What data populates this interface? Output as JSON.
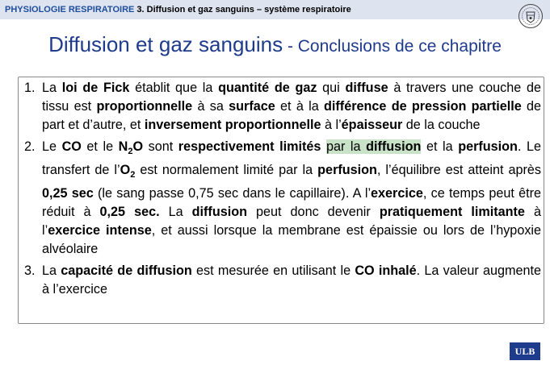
{
  "header": {
    "course": "PHYSIOLOGIE RESPIRATOIRE",
    "chapter": "3. Diffusion et gaz sanguins – système respiratoire"
  },
  "title": {
    "main": "Diffusion et gaz sanguins",
    "sub": " - Conclusions de ce chapitre"
  },
  "items": [
    {
      "num": "1.",
      "segments": [
        {
          "t": "La "
        },
        {
          "t": "loi de Fick",
          "b": true
        },
        {
          "t": " établit que la "
        },
        {
          "t": "quantité de gaz",
          "b": true
        },
        {
          "t": " qui "
        },
        {
          "t": "diffuse",
          "b": true
        },
        {
          "t": " à travers une couche de tissu est "
        },
        {
          "t": "proportionnelle",
          "b": true
        },
        {
          "t": " à sa "
        },
        {
          "t": "surface",
          "b": true
        },
        {
          "t": " et à la "
        },
        {
          "t": "différence de pression partielle",
          "b": true
        },
        {
          "t": " de part et d’autre, et "
        },
        {
          "t": "inversement proportionnelle",
          "b": true
        },
        {
          "t": " à l’"
        },
        {
          "t": "épaisseur",
          "b": true
        },
        {
          "t": " de la couche"
        }
      ]
    },
    {
      "num": "2.",
      "segments": [
        {
          "t": "Le "
        },
        {
          "t": "CO",
          "b": true
        },
        {
          "t": " et le "
        },
        {
          "t": "N",
          "b": true
        },
        {
          "t": "2",
          "b": true,
          "sub": true
        },
        {
          "t": "O",
          "b": true
        },
        {
          "t": " sont "
        },
        {
          "t": "respectivement limités",
          "b": true
        },
        {
          "t": " "
        },
        {
          "t": "par la ",
          "hl": true
        },
        {
          "t": "diffusion",
          "b": true,
          "hl": true
        },
        {
          "t": "  et la "
        },
        {
          "t": "perfusion",
          "b": true
        },
        {
          "t": ". Le transfert de l’"
        },
        {
          "t": "O",
          "b": true
        },
        {
          "t": "2",
          "b": true,
          "sub": true
        },
        {
          "t": " est normalement limité par la "
        },
        {
          "t": "perfusion",
          "b": true
        },
        {
          "t": ", l’équilibre est atteint après "
        },
        {
          "t": "0,25 sec",
          "b": true
        },
        {
          "t": " (le sang passe 0,75 sec dans le capillaire). A l’"
        },
        {
          "t": "exercice",
          "b": true
        },
        {
          "t": ", ce temps peut être réduit à "
        },
        {
          "t": "0,25 sec.",
          "b": true
        },
        {
          "t": " La "
        },
        {
          "t": "diffusion",
          "b": true
        },
        {
          "t": " peut donc devenir "
        },
        {
          "t": "pratiquement limitante",
          "b": true
        },
        {
          "t": " à l’"
        },
        {
          "t": "exercice intense",
          "b": true
        },
        {
          "t": ", et aussi lorsque la membrane est épaissie ou lors de l’hypoxie alvéolaire"
        }
      ]
    },
    {
      "num": "3.",
      "segments": [
        {
          "t": "La "
        },
        {
          "t": "capacité de diffusion",
          "b": true
        },
        {
          "t": " est mesurée en utilisant le "
        },
        {
          "t": "CO inhalé",
          "b": true
        },
        {
          "t": ". La valeur augmente à l’exercice"
        }
      ]
    }
  ],
  "footer_logo": "ULB",
  "colors": {
    "accent": "#1f3b8c",
    "header_bg": "#dde3ef",
    "highlight": "#c8e3c8"
  }
}
